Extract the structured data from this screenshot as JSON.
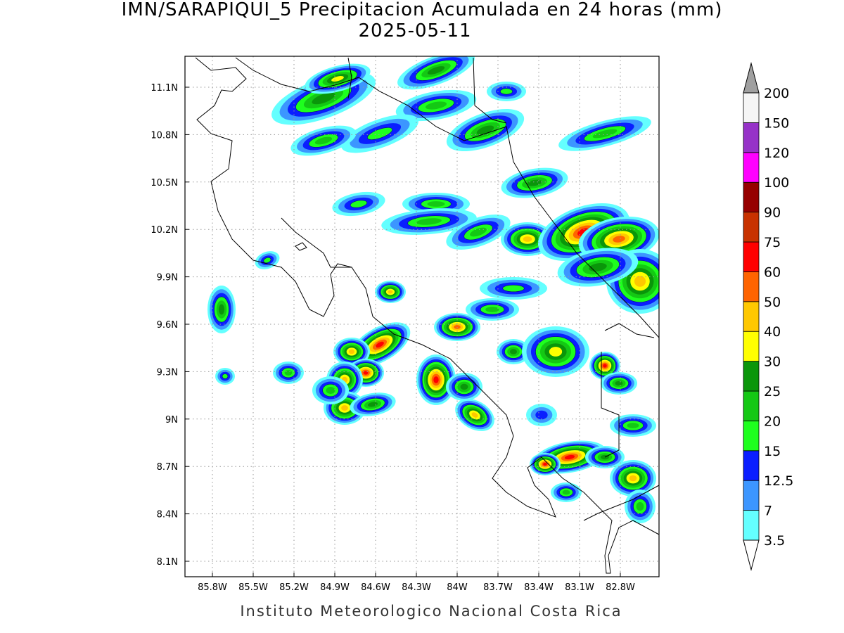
{
  "header": {
    "title": "IMN/SARAPIQUI_5 Precipitacion Acumulada en 24 horas (mm)",
    "date": "2025-05-11"
  },
  "map": {
    "lat_labels": [
      "11.1N",
      "10.8N",
      "10.5N",
      "10.2N",
      "9.9N",
      "9.6N",
      "9.3N",
      "9N",
      "8.7N",
      "8.4N",
      "8.1N"
    ],
    "lon_labels": [
      "85.8W",
      "85.5W",
      "85.2W",
      "84.9W",
      "84.6W",
      "84.3W",
      "84W",
      "83.7W",
      "83.4W",
      "83.1W",
      "82.8W"
    ]
  },
  "colorbar": {
    "levels": [
      3.5,
      7,
      12.5,
      15,
      20,
      25,
      30,
      40,
      50,
      60,
      75,
      90,
      100,
      120,
      150,
      200
    ],
    "colors": [
      "#64ffff",
      "#3c96ff",
      "#0a1eff",
      "#1eff1e",
      "#14c814",
      "#0a960a",
      "#ffff00",
      "#ffc800",
      "#ff6400",
      "#ff0000",
      "#c83200",
      "#960000",
      "#ff00ff",
      "#9632c8",
      "#f5f5f5"
    ],
    "under_color": "#ffffff",
    "over_color": "#a0a0a0"
  },
  "footer": "Instituto Meteorologico Nacional Costa Rica"
}
